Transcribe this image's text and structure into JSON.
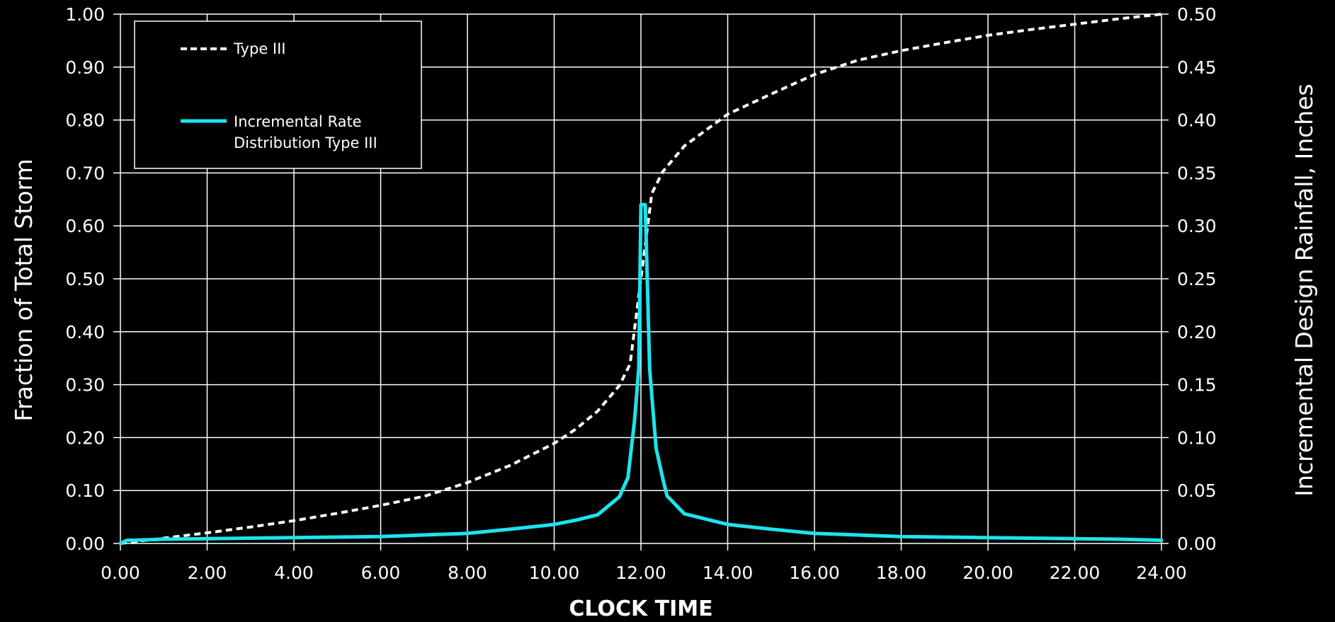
{
  "chart_data": {
    "type": "line",
    "xlabel": "CLOCK TIME",
    "ylabel_left": "Fraction of Total Storm",
    "ylabel_right": "Incremental Design Rainfall, Inches",
    "xlim": [
      0,
      24
    ],
    "ylim_left": [
      0,
      1
    ],
    "ylim_right": [
      0,
      0.5
    ],
    "grid": true,
    "legend_position": "top-left",
    "x_ticks": [
      "0.00",
      "2.00",
      "4.00",
      "6.00",
      "8.00",
      "10.00",
      "12.00",
      "14.00",
      "16.00",
      "18.00",
      "20.00",
      "22.00",
      "24.00"
    ],
    "y_ticks_left": [
      "0.00",
      "0.10",
      "0.20",
      "0.30",
      "0.40",
      "0.50",
      "0.60",
      "0.70",
      "0.80",
      "0.90",
      "1.00"
    ],
    "y_ticks_right": [
      "0.00",
      "0.05",
      "0.10",
      "0.15",
      "0.20",
      "0.25",
      "0.30",
      "0.35",
      "0.40",
      "0.45",
      "0.50"
    ],
    "series": [
      {
        "name": "Type III",
        "axis": "left",
        "style": "dashed",
        "color": "#ffffff",
        "x": [
          0,
          1,
          2,
          3,
          4,
          5,
          6,
          7,
          8,
          9,
          10,
          10.5,
          11,
          11.5,
          11.75,
          12,
          12.25,
          12.5,
          13,
          14,
          15,
          16,
          17,
          18,
          19,
          20,
          21,
          22,
          23,
          24
        ],
        "y": [
          0,
          0.01,
          0.02,
          0.031,
          0.043,
          0.057,
          0.072,
          0.089,
          0.115,
          0.148,
          0.189,
          0.216,
          0.25,
          0.298,
          0.339,
          0.5,
          0.661,
          0.702,
          0.751,
          0.811,
          0.849,
          0.886,
          0.913,
          0.931,
          0.946,
          0.96,
          0.971,
          0.981,
          0.991,
          1.0
        ]
      },
      {
        "name": "Incremental Rate Distribution Type III",
        "axis": "right",
        "style": "solid",
        "color": "#1ee3ee",
        "x": [
          0,
          0.15,
          0.3,
          1,
          2,
          3,
          4,
          5,
          6,
          7,
          8,
          9,
          10,
          10.5,
          11,
          11.5,
          11.7,
          11.85,
          11.95,
          12,
          12.1,
          12.2,
          12.35,
          12.5,
          12.6,
          13,
          14,
          15,
          16,
          17,
          18,
          19,
          20,
          21,
          22,
          23,
          24
        ],
        "y": [
          0,
          0.003,
          0.003,
          0.004,
          0.0045,
          0.005,
          0.0055,
          0.006,
          0.0065,
          0.008,
          0.0095,
          0.0135,
          0.018,
          0.022,
          0.027,
          0.044,
          0.062,
          0.115,
          0.165,
          0.32,
          0.32,
          0.165,
          0.09,
          0.062,
          0.045,
          0.028,
          0.018,
          0.0135,
          0.0095,
          0.008,
          0.0065,
          0.006,
          0.0055,
          0.005,
          0.0045,
          0.004,
          0.003
        ]
      }
    ]
  },
  "legend": {
    "line1": "Type III",
    "line2a": "Incremental Rate",
    "line2b": "Distribution Type III"
  }
}
